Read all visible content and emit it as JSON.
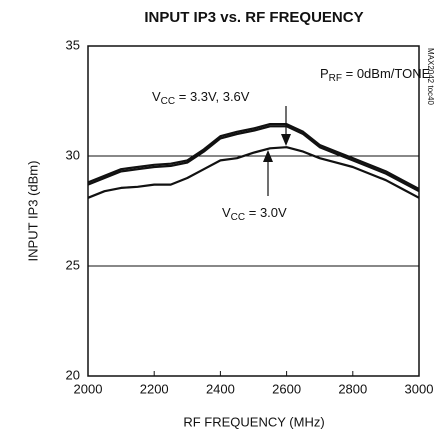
{
  "chart_data": {
    "type": "line",
    "title": "INPUT IP3 vs. RF FREQUENCY",
    "x_label": "RF FREQUENCY (MHz)",
    "y_label": "INPUT IP3 (dBm)",
    "side_label": "MAX2042 toc40",
    "x": [
      2000,
      2050,
      2100,
      2150,
      2200,
      2250,
      2300,
      2350,
      2400,
      2450,
      2500,
      2550,
      2600,
      2650,
      2700,
      2750,
      2800,
      2850,
      2900,
      2950,
      3000
    ],
    "series": [
      {
        "color": "#111111",
        "values": [
          28.7,
          29.0,
          29.3,
          29.4,
          29.5,
          29.55,
          29.7,
          30.2,
          30.8,
          31.0,
          31.15,
          31.35,
          31.35,
          31.0,
          30.4,
          30.1,
          29.8,
          29.5,
          29.2,
          28.8,
          28.4
        ]
      },
      {
        "color": "#111111",
        "values": [
          28.8,
          29.1,
          29.4,
          29.5,
          29.6,
          29.65,
          29.8,
          30.3,
          30.9,
          31.1,
          31.25,
          31.45,
          31.45,
          31.1,
          30.5,
          30.2,
          29.9,
          29.6,
          29.3,
          28.9,
          28.5
        ]
      },
      {
        "color": "#111111",
        "values": [
          28.1,
          28.4,
          28.55,
          28.6,
          28.7,
          28.7,
          29.0,
          29.4,
          29.8,
          29.9,
          30.15,
          30.35,
          30.4,
          30.2,
          29.9,
          29.7,
          29.5,
          29.2,
          28.9,
          28.5,
          28.1
        ]
      }
    ],
    "annotations": [
      {
        "main": "V",
        "sub": "CC",
        "rest": " = 3.3V, 3.6V"
      },
      {
        "main": "V",
        "sub": "CC",
        "rest": " = 3.0V"
      },
      {
        "main": "P",
        "sub": "RF",
        "rest": " = 0dBm/TONE"
      }
    ],
    "xlim": [
      2000,
      3000
    ],
    "ylim": [
      20,
      35
    ],
    "xticks": [
      2000,
      2200,
      2400,
      2600,
      2800,
      3000
    ],
    "yticks": [
      20,
      25,
      30,
      35
    ],
    "grid": true
  }
}
